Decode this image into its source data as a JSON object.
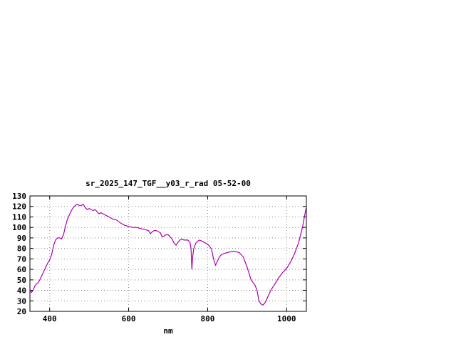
{
  "window": {
    "background": "#ffffff"
  },
  "chart_data": {
    "type": "line",
    "title": "sr_2025_147_TGF__y03_r_rad 05-52-00",
    "xlabel": "nm",
    "ylabel": "",
    "xlim": [
      350,
      1050
    ],
    "ylim": [
      20,
      130
    ],
    "x_ticks": [
      400,
      600,
      800,
      1000
    ],
    "y_ticks": [
      20,
      30,
      40,
      50,
      60,
      70,
      80,
      90,
      100,
      110,
      120,
      130
    ],
    "grid": true,
    "legend": "none",
    "line_color": "#aa00aa",
    "series": [
      {
        "name": "sr_2025_147_TGF__y03_r_rad",
        "x": [
          350,
          354,
          358,
          362,
          366,
          370,
          375,
          380,
          385,
          390,
          395,
          400,
          405,
          410,
          415,
          420,
          425,
          430,
          435,
          440,
          445,
          450,
          455,
          460,
          465,
          470,
          475,
          480,
          485,
          490,
          495,
          500,
          505,
          510,
          515,
          520,
          525,
          530,
          535,
          540,
          545,
          550,
          555,
          560,
          570,
          580,
          590,
          600,
          610,
          620,
          630,
          640,
          650,
          655,
          660,
          665,
          670,
          675,
          680,
          685,
          690,
          695,
          700,
          705,
          710,
          715,
          720,
          725,
          730,
          735,
          740,
          745,
          750,
          755,
          758,
          760,
          762,
          765,
          770,
          775,
          780,
          785,
          790,
          795,
          800,
          805,
          810,
          815,
          820,
          825,
          830,
          835,
          840,
          850,
          860,
          870,
          880,
          890,
          900,
          910,
          920,
          925,
          930,
          935,
          940,
          945,
          950,
          955,
          960,
          970,
          980,
          990,
          1000,
          1010,
          1020,
          1030,
          1040,
          1050
        ],
        "y": [
          41,
          38,
          40,
          44,
          46,
          47,
          50,
          54,
          58,
          62,
          66,
          69,
          74,
          83,
          88,
          90,
          90,
          89,
          93,
          101,
          108,
          112,
          116,
          119,
          121,
          122,
          121,
          121,
          122,
          119,
          117,
          118,
          117,
          116,
          117,
          115,
          113,
          114,
          113,
          112,
          111,
          110,
          109,
          108,
          107,
          104,
          102,
          101,
          100,
          100,
          99,
          98,
          97,
          94,
          96,
          97,
          97,
          96,
          95,
          91,
          92,
          93,
          93,
          91,
          89,
          85,
          83,
          86,
          88,
          89,
          88,
          88,
          88,
          86,
          80,
          60,
          72,
          80,
          85,
          87,
          88,
          87,
          86,
          85,
          84,
          82,
          79,
          70,
          64,
          68,
          72,
          74,
          75,
          76,
          77,
          77,
          76,
          72,
          62,
          50,
          45,
          40,
          30,
          27,
          26,
          28,
          32,
          36,
          40,
          46,
          52,
          57,
          61,
          67,
          75,
          85,
          100,
          120
        ]
      }
    ]
  }
}
